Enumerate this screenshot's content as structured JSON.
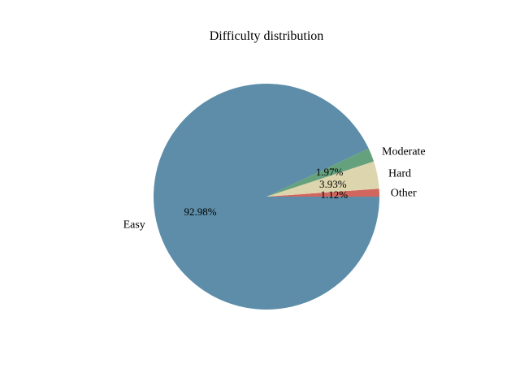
{
  "chart_data": {
    "type": "pie",
    "title": "Difficulty distribution",
    "slices": [
      {
        "label": "Other",
        "value": 1.12,
        "pct_label": "1.12%",
        "color": "#d1665f"
      },
      {
        "label": "Hard",
        "value": 3.93,
        "pct_label": "3.93%",
        "color": "#ddd5ad"
      },
      {
        "label": "Moderate",
        "value": 1.97,
        "pct_label": "1.97%",
        "color": "#65a17d"
      },
      {
        "label": "Easy",
        "value": 92.98,
        "pct_label": "92.98%",
        "color": "#5d8da8"
      }
    ],
    "legend": "none"
  }
}
